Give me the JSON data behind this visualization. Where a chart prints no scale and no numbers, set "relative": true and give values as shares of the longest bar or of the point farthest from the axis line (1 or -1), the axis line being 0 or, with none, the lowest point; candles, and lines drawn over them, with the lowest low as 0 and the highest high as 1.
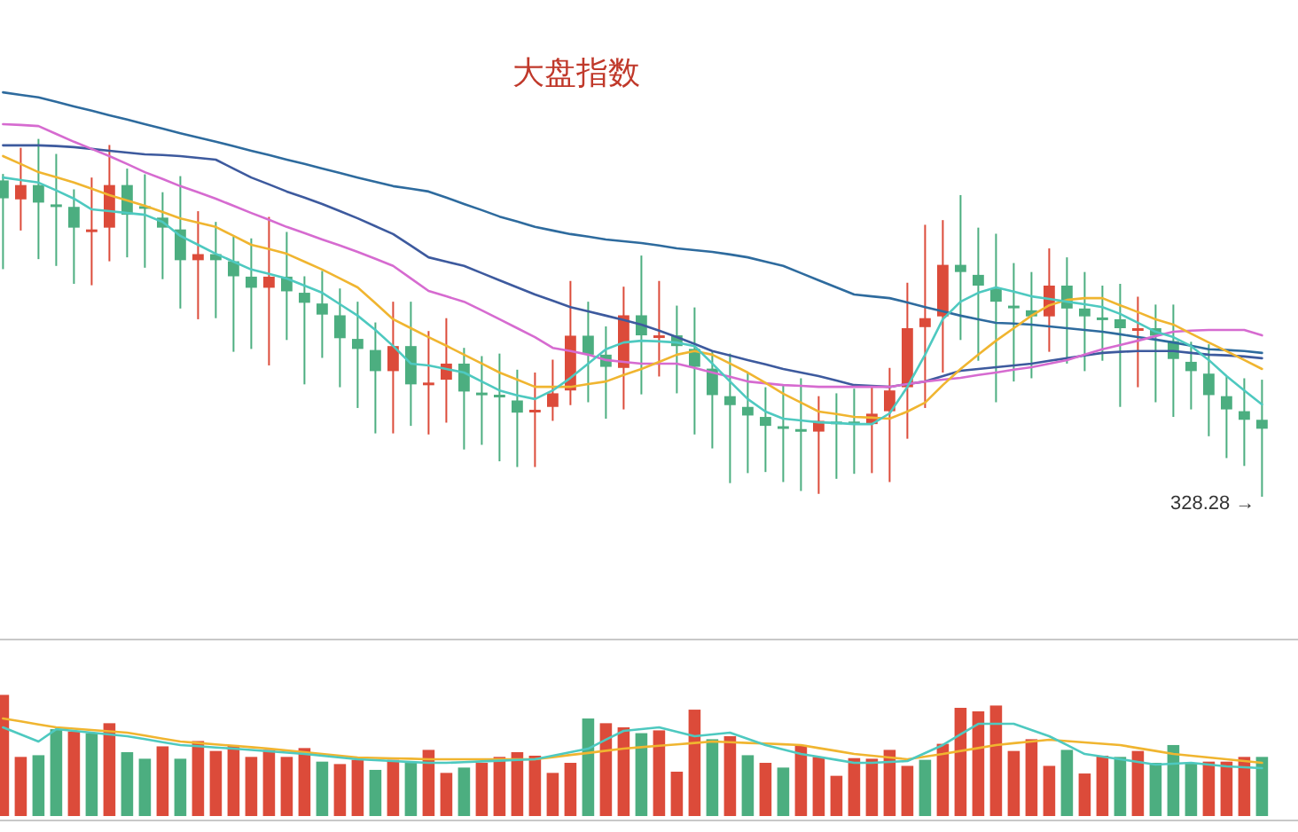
{
  "chart_data": [
    {
      "type": "candlestick",
      "title": "大盘指数",
      "relative": true,
      "categories": [
        null,
        null,
        null,
        null,
        null,
        null,
        null,
        null,
        null,
        null,
        null,
        null,
        null,
        null,
        null,
        null,
        null,
        null,
        null,
        null,
        null,
        null,
        null,
        null,
        null,
        null,
        null,
        null,
        null,
        null,
        null,
        null,
        null,
        null,
        null,
        null,
        null,
        null,
        null,
        null,
        null,
        null,
        null,
        null,
        null,
        null,
        null,
        null,
        null,
        null,
        null,
        null,
        null,
        null,
        null,
        null,
        null,
        null,
        null,
        null,
        null,
        null,
        null,
        null,
        null,
        null,
        null,
        null,
        null,
        null,
        null,
        null
      ],
      "ohlc": [
        [
          0.884,
          0.902,
          0.636,
          0.834
        ],
        [
          0.831,
          0.975,
          0.744,
          0.871
        ],
        [
          0.871,
          1.0,
          0.664,
          0.822
        ],
        [
          0.817,
          0.958,
          0.645,
          0.815
        ],
        [
          0.81,
          0.859,
          0.595,
          0.752
        ],
        [
          0.745,
          0.892,
          0.591,
          0.747
        ],
        [
          0.752,
          0.983,
          0.658,
          0.871
        ],
        [
          0.871,
          0.917,
          0.669,
          0.788
        ],
        [
          0.812,
          0.901,
          0.64,
          0.81
        ],
        [
          0.78,
          0.851,
          0.608,
          0.752
        ],
        [
          0.747,
          0.896,
          0.526,
          0.661
        ],
        [
          0.661,
          0.798,
          0.496,
          0.678
        ],
        [
          0.678,
          0.768,
          0.499,
          0.661
        ],
        [
          0.658,
          0.727,
          0.405,
          0.616
        ],
        [
          0.615,
          0.722,
          0.413,
          0.584
        ],
        [
          0.584,
          0.782,
          0.367,
          0.615
        ],
        [
          0.615,
          0.74,
          0.438,
          0.574
        ],
        [
          0.57,
          0.616,
          0.314,
          0.542
        ],
        [
          0.54,
          0.631,
          0.388,
          0.509
        ],
        [
          0.507,
          0.582,
          0.306,
          0.443
        ],
        [
          0.441,
          0.545,
          0.248,
          0.413
        ],
        [
          0.41,
          0.487,
          0.177,
          0.351
        ],
        [
          0.351,
          0.545,
          0.177,
          0.421
        ],
        [
          0.421,
          0.545,
          0.198,
          0.314
        ],
        [
          0.317,
          0.463,
          0.174,
          0.319
        ],
        [
          0.327,
          0.499,
          0.207,
          0.372
        ],
        [
          0.372,
          0.416,
          0.132,
          0.294
        ],
        [
          0.291,
          0.393,
          0.145,
          0.289
        ],
        [
          0.285,
          0.4,
          0.099,
          0.283
        ],
        [
          0.269,
          0.355,
          0.083,
          0.235
        ],
        [
          0.241,
          0.347,
          0.083,
          0.243
        ],
        [
          0.251,
          0.383,
          0.212,
          0.289
        ],
        [
          0.297,
          0.603,
          0.256,
          0.45
        ],
        [
          0.45,
          0.545,
          0.264,
          0.397
        ],
        [
          0.397,
          0.476,
          0.218,
          0.363
        ],
        [
          0.36,
          0.587,
          0.244,
          0.507
        ],
        [
          0.507,
          0.674,
          0.286,
          0.451
        ],
        [
          0.449,
          0.603,
          0.336,
          0.451
        ],
        [
          0.451,
          0.534,
          0.289,
          0.421
        ],
        [
          0.413,
          0.529,
          0.174,
          0.363
        ],
        [
          0.358,
          0.405,
          0.135,
          0.284
        ],
        [
          0.281,
          0.4,
          0.038,
          0.256
        ],
        [
          0.251,
          0.347,
          0.066,
          0.227
        ],
        [
          0.223,
          0.306,
          0.069,
          0.198
        ],
        [
          0.197,
          0.314,
          0.041,
          0.195
        ],
        [
          0.189,
          0.331,
          0.016,
          0.187
        ],
        [
          0.182,
          0.281,
          0.008,
          0.212
        ],
        [
          0.21,
          0.289,
          0.05,
          0.208
        ],
        [
          0.21,
          0.302,
          0.064,
          0.208
        ],
        [
          0.203,
          0.306,
          0.066,
          0.232
        ],
        [
          0.239,
          0.36,
          0.041,
          0.297
        ],
        [
          0.306,
          0.598,
          0.162,
          0.471
        ],
        [
          0.474,
          0.76,
          0.248,
          0.499
        ],
        [
          0.504,
          0.773,
          0.347,
          0.648
        ],
        [
          0.648,
          0.843,
          0.438,
          0.628
        ],
        [
          0.62,
          0.752,
          0.38,
          0.59
        ],
        [
          0.582,
          0.735,
          0.264,
          0.545
        ],
        [
          0.534,
          0.653,
          0.322,
          0.532
        ],
        [
          0.521,
          0.628,
          0.331,
          0.504
        ],
        [
          0.504,
          0.694,
          0.405,
          0.59
        ],
        [
          0.59,
          0.669,
          0.372,
          0.526
        ],
        [
          0.526,
          0.628,
          0.351,
          0.504
        ],
        [
          0.501,
          0.59,
          0.38,
          0.499
        ],
        [
          0.496,
          0.595,
          0.251,
          0.471
        ],
        [
          0.469,
          0.559,
          0.306,
          0.471
        ],
        [
          0.471,
          0.537,
          0.264,
          0.45
        ],
        [
          0.435,
          0.537,
          0.223,
          0.385
        ],
        [
          0.377,
          0.433,
          0.244,
          0.351
        ],
        [
          0.344,
          0.426,
          0.169,
          0.284
        ],
        [
          0.281,
          0.336,
          0.108,
          0.244
        ],
        [
          0.239,
          0.331,
          0.086,
          0.215
        ],
        [
          0.215,
          0.327,
          0.0,
          0.19
        ]
      ],
      "colors": [
        "#4cae80",
        "#dc4b3a",
        "#4cae80",
        "#4cae80",
        "#4cae80",
        "#dc4b3a",
        "#dc4b3a",
        "#4cae80",
        "#4cae80",
        "#4cae80",
        "#4cae80",
        "#dc4b3a",
        "#4cae80",
        "#4cae80",
        "#4cae80",
        "#dc4b3a",
        "#4cae80",
        "#4cae80",
        "#4cae80",
        "#4cae80",
        "#4cae80",
        "#4cae80",
        "#dc4b3a",
        "#4cae80",
        "#dc4b3a",
        "#dc4b3a",
        "#4cae80",
        "#4cae80",
        "#4cae80",
        "#4cae80",
        "#dc4b3a",
        "#dc4b3a",
        "#dc4b3a",
        "#4cae80",
        "#4cae80",
        "#dc4b3a",
        "#4cae80",
        "#dc4b3a",
        "#4cae80",
        "#4cae80",
        "#4cae80",
        "#4cae80",
        "#4cae80",
        "#4cae80",
        "#4cae80",
        "#4cae80",
        "#dc4b3a",
        "#4cae80",
        "#4cae80",
        "#dc4b3a",
        "#dc4b3a",
        "#dc4b3a",
        "#dc4b3a",
        "#dc4b3a",
        "#4cae80",
        "#4cae80",
        "#4cae80",
        "#4cae80",
        "#4cae80",
        "#dc4b3a",
        "#4cae80",
        "#4cae80",
        "#4cae80",
        "#4cae80",
        "#dc4b3a",
        "#4cae80",
        "#4cae80",
        "#4cae80",
        "#4cae80",
        "#4cae80",
        "#4cae80",
        "#4cae80"
      ],
      "series": [
        {
          "type": "line",
          "color": "#2e6b9e",
          "values": [
            1.13,
            1.123,
            1.116,
            1.104,
            1.091,
            1.079,
            1.066,
            1.054,
            1.041,
            1.029,
            1.016,
            1.004,
            0.992,
            0.98,
            0.967,
            0.955,
            0.942,
            0.93,
            0.917,
            0.905,
            0.892,
            0.88,
            0.868,
            0.861,
            0.853,
            0.836,
            0.818,
            0.801,
            0.783,
            0.769,
            0.754,
            0.744,
            0.734,
            0.727,
            0.719,
            0.714,
            0.709,
            0.702,
            0.694,
            0.689,
            0.684,
            0.677,
            0.669,
            0.657,
            0.645,
            0.625,
            0.605,
            0.585,
            0.565,
            0.56,
            0.555,
            0.543,
            0.53,
            0.518,
            0.506,
            0.496,
            0.486,
            0.484,
            0.481,
            0.476,
            0.471,
            0.466,
            0.461,
            0.454,
            0.446,
            0.439,
            0.431,
            0.422,
            0.412,
            0.41,
            0.407,
            0.402
          ]
        },
        {
          "type": "line",
          "color": "#3d5a9e",
          "values": [
            0.982,
            0.982,
            0.982,
            0.98,
            0.977,
            0.972,
            0.967,
            0.962,
            0.957,
            0.955,
            0.952,
            0.947,
            0.942,
            0.917,
            0.892,
            0.873,
            0.853,
            0.836,
            0.818,
            0.798,
            0.778,
            0.756,
            0.734,
            0.702,
            0.669,
            0.657,
            0.645,
            0.625,
            0.605,
            0.585,
            0.565,
            0.548,
            0.53,
            0.518,
            0.506,
            0.494,
            0.481,
            0.464,
            0.446,
            0.427,
            0.407,
            0.395,
            0.382,
            0.37,
            0.357,
            0.347,
            0.337,
            0.325,
            0.312,
            0.31,
            0.307,
            0.315,
            0.322,
            0.337,
            0.352,
            0.357,
            0.362,
            0.367,
            0.372,
            0.38,
            0.387,
            0.395,
            0.402,
            0.405,
            0.407,
            0.407,
            0.407,
            0.402,
            0.397,
            0.395,
            0.392,
            0.387
          ]
        },
        {
          "type": "line",
          "color": "#d66bd0",
          "values": [
            1.041,
            1.039,
            1.036,
            1.014,
            0.992,
            0.972,
            0.952,
            0.93,
            0.907,
            0.888,
            0.868,
            0.851,
            0.833,
            0.813,
            0.793,
            0.774,
            0.754,
            0.737,
            0.719,
            0.702,
            0.684,
            0.665,
            0.645,
            0.61,
            0.575,
            0.56,
            0.545,
            0.521,
            0.496,
            0.471,
            0.446,
            0.416,
            0.407,
            0.397,
            0.382,
            0.377,
            0.372,
            0.372,
            0.372,
            0.36,
            0.347,
            0.335,
            0.322,
            0.317,
            0.312,
            0.31,
            0.307,
            0.307,
            0.307,
            0.307,
            0.307,
            0.315,
            0.322,
            0.327,
            0.332,
            0.34,
            0.347,
            0.355,
            0.362,
            0.372,
            0.382,
            0.397,
            0.412,
            0.424,
            0.436,
            0.449,
            0.461,
            0.464,
            0.466,
            0.466,
            0.466,
            0.451
          ]
        },
        {
          "type": "line",
          "color": "#f0b530",
          "values": [
            0.952,
            0.93,
            0.907,
            0.893,
            0.878,
            0.861,
            0.843,
            0.828,
            0.813,
            0.796,
            0.778,
            0.766,
            0.754,
            0.729,
            0.704,
            0.692,
            0.679,
            0.657,
            0.635,
            0.61,
            0.585,
            0.541,
            0.496,
            0.471,
            0.446,
            0.422,
            0.397,
            0.372,
            0.347,
            0.327,
            0.307,
            0.307,
            0.307,
            0.315,
            0.322,
            0.34,
            0.357,
            0.377,
            0.397,
            0.407,
            0.397,
            0.372,
            0.347,
            0.318,
            0.288,
            0.263,
            0.238,
            0.231,
            0.223,
            0.221,
            0.218,
            0.238,
            0.263,
            0.312,
            0.357,
            0.397,
            0.436,
            0.471,
            0.506,
            0.535,
            0.55,
            0.555,
            0.555,
            0.535,
            0.516,
            0.496,
            0.481,
            0.456,
            0.431,
            0.407,
            0.382,
            0.357
          ]
        },
        {
          "type": "line",
          "color": "#4ec9c0",
          "values": [
            0.892,
            0.885,
            0.878,
            0.856,
            0.833,
            0.803,
            0.798,
            0.793,
            0.788,
            0.768,
            0.729,
            0.704,
            0.679,
            0.657,
            0.635,
            0.623,
            0.61,
            0.59,
            0.57,
            0.538,
            0.506,
            0.466,
            0.421,
            0.372,
            0.367,
            0.357,
            0.347,
            0.322,
            0.297,
            0.283,
            0.273,
            0.297,
            0.332,
            0.372,
            0.412,
            0.431,
            0.436,
            0.434,
            0.431,
            0.421,
            0.372,
            0.322,
            0.273,
            0.238,
            0.218,
            0.213,
            0.208,
            0.206,
            0.203,
            0.203,
            0.233,
            0.307,
            0.397,
            0.496,
            0.545,
            0.57,
            0.585,
            0.573,
            0.56,
            0.553,
            0.545,
            0.538,
            0.53,
            0.511,
            0.486,
            0.461,
            0.446,
            0.421,
            0.382,
            0.337,
            0.297,
            0.258
          ]
        }
      ],
      "annotations": [
        "328.28 →"
      ]
    },
    {
      "type": "bar",
      "relative": true,
      "categories": [
        null,
        null,
        null,
        null,
        null,
        null,
        null,
        null,
        null,
        null,
        null,
        null,
        null,
        null,
        null,
        null,
        null,
        null,
        null,
        null,
        null,
        null,
        null,
        null,
        null,
        null,
        null,
        null,
        null,
        null,
        null,
        null,
        null,
        null,
        null,
        null,
        null,
        null,
        null,
        null,
        null,
        null,
        null,
        null,
        null,
        null,
        null,
        null,
        null,
        null,
        null,
        null,
        null,
        null,
        null,
        null,
        null,
        null,
        null,
        null,
        null,
        null,
        null,
        null,
        null,
        null,
        null,
        null,
        null,
        null,
        null,
        null
      ],
      "values": [
        1.0,
        0.488,
        0.502,
        0.717,
        0.698,
        0.684,
        0.766,
        0.527,
        0.473,
        0.575,
        0.473,
        0.619,
        0.537,
        0.586,
        0.488,
        0.546,
        0.488,
        0.561,
        0.449,
        0.429,
        0.464,
        0.381,
        0.464,
        0.439,
        0.546,
        0.356,
        0.4,
        0.439,
        0.488,
        0.527,
        0.498,
        0.356,
        0.439,
        0.805,
        0.766,
        0.732,
        0.684,
        0.707,
        0.366,
        0.878,
        0.634,
        0.659,
        0.502,
        0.439,
        0.4,
        0.586,
        0.488,
        0.332,
        0.478,
        0.473,
        0.546,
        0.414,
        0.464,
        0.596,
        0.893,
        0.864,
        0.912,
        0.537,
        0.634,
        0.414,
        0.546,
        0.351,
        0.498,
        0.488,
        0.537,
        0.439,
        0.586,
        0.439,
        0.449,
        0.449,
        0.488,
        0.488
      ],
      "colors": [
        "#dc4b3a",
        "#dc4b3a",
        "#4cae80",
        "#4cae80",
        "#dc4b3a",
        "#4cae80",
        "#dc4b3a",
        "#4cae80",
        "#4cae80",
        "#dc4b3a",
        "#4cae80",
        "#dc4b3a",
        "#dc4b3a",
        "#dc4b3a",
        "#dc4b3a",
        "#dc4b3a",
        "#dc4b3a",
        "#dc4b3a",
        "#4cae80",
        "#dc4b3a",
        "#dc4b3a",
        "#4cae80",
        "#dc4b3a",
        "#4cae80",
        "#dc4b3a",
        "#dc4b3a",
        "#4cae80",
        "#dc4b3a",
        "#dc4b3a",
        "#dc4b3a",
        "#dc4b3a",
        "#dc4b3a",
        "#dc4b3a",
        "#4cae80",
        "#dc4b3a",
        "#dc4b3a",
        "#4cae80",
        "#dc4b3a",
        "#dc4b3a",
        "#dc4b3a",
        "#4cae80",
        "#dc4b3a",
        "#4cae80",
        "#dc4b3a",
        "#4cae80",
        "#dc4b3a",
        "#dc4b3a",
        "#dc4b3a",
        "#dc4b3a",
        "#dc4b3a",
        "#dc4b3a",
        "#dc4b3a",
        "#4cae80",
        "#dc4b3a",
        "#dc4b3a",
        "#dc4b3a",
        "#dc4b3a",
        "#dc4b3a",
        "#dc4b3a",
        "#dc4b3a",
        "#4cae80",
        "#dc4b3a",
        "#dc4b3a",
        "#4cae80",
        "#dc4b3a",
        "#4cae80",
        "#4cae80",
        "#4cae80",
        "#dc4b3a",
        "#dc4b3a",
        "#dc4b3a",
        "#4cae80"
      ],
      "series": [
        {
          "type": "line",
          "color": "#f0b530",
          "values": [
            0.805,
            0.781,
            0.756,
            0.732,
            0.721,
            0.71,
            0.699,
            0.688,
            0.664,
            0.639,
            0.615,
            0.603,
            0.591,
            0.58,
            0.568,
            0.556,
            0.541,
            0.527,
            0.512,
            0.498,
            0.483,
            0.48,
            0.476,
            0.473,
            0.469,
            0.469,
            0.469,
            0.469,
            0.469,
            0.469,
            0.469,
            0.486,
            0.504,
            0.521,
            0.539,
            0.556,
            0.568,
            0.58,
            0.591,
            0.603,
            0.615,
            0.609,
            0.603,
            0.598,
            0.592,
            0.586,
            0.561,
            0.537,
            0.512,
            0.498,
            0.483,
            0.469,
            0.491,
            0.512,
            0.537,
            0.561,
            0.586,
            0.601,
            0.615,
            0.63,
            0.619,
            0.608,
            0.597,
            0.586,
            0.561,
            0.537,
            0.512,
            0.498,
            0.483,
            0.469,
            0.454,
            0.439
          ]
        },
        {
          "type": "line",
          "color": "#4ec9c0",
          "values": [
            0.732,
            0.674,
            0.615,
            0.717,
            0.703,
            0.688,
            0.674,
            0.659,
            0.635,
            0.61,
            0.586,
            0.576,
            0.566,
            0.556,
            0.545,
            0.534,
            0.523,
            0.512,
            0.498,
            0.483,
            0.469,
            0.461,
            0.454,
            0.446,
            0.439,
            0.439,
            0.445,
            0.451,
            0.457,
            0.463,
            0.469,
            0.498,
            0.527,
            0.556,
            0.63,
            0.703,
            0.718,
            0.732,
            0.696,
            0.659,
            0.674,
            0.688,
            0.637,
            0.586,
            0.549,
            0.512,
            0.488,
            0.464,
            0.439,
            0.439,
            0.447,
            0.454,
            0.52,
            0.586,
            0.674,
            0.761,
            0.761,
            0.761,
            0.71,
            0.659,
            0.586,
            0.512,
            0.491,
            0.469,
            0.447,
            0.425,
            0.432,
            0.439,
            0.425,
            0.41,
            0.403,
            0.395
          ]
        }
      ]
    }
  ]
}
